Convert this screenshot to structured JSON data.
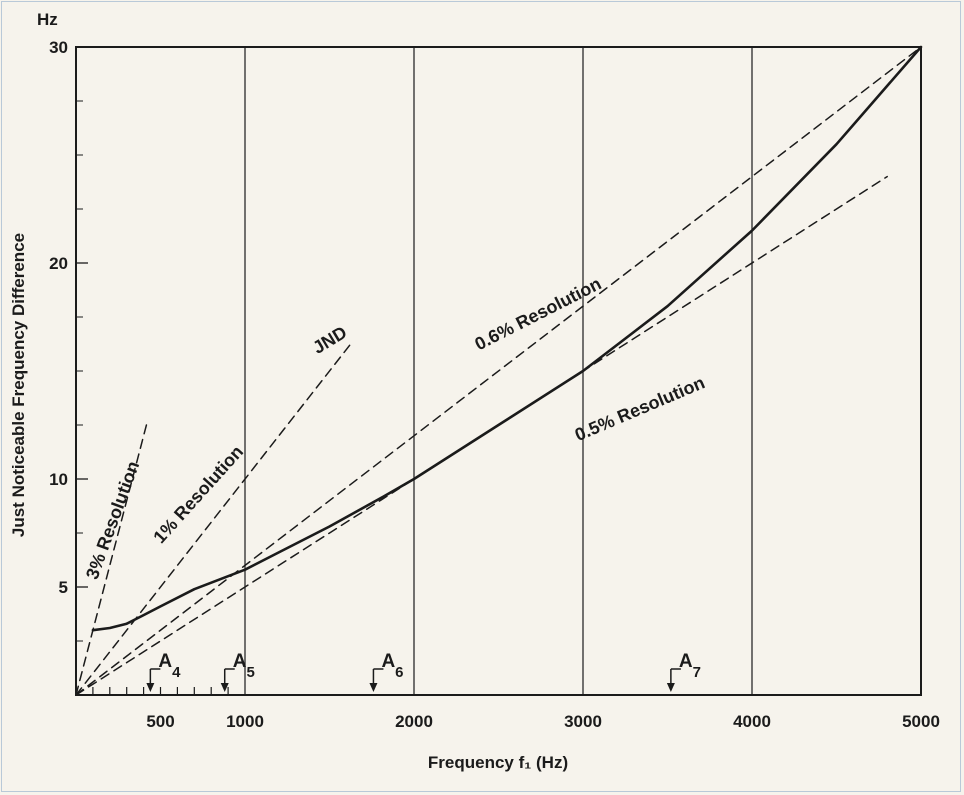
{
  "chart_data": {
    "type": "line",
    "y_unit": "Hz",
    "ylabel": "Just Noticeable Frequency Difference",
    "xlabel": "Frequency f₁ (Hz)",
    "xlim": [
      0,
      5000
    ],
    "ylim": [
      0,
      30
    ],
    "x_ticks": [
      "500",
      "1000",
      "2000",
      "3000",
      "4000",
      "5000"
    ],
    "y_ticks": [
      "5",
      "10",
      "20",
      "30"
    ],
    "grid": true,
    "series": [
      {
        "name": "JND",
        "style": "solid",
        "x": [
          100,
          200,
          300,
          400,
          500,
          700,
          900,
          1000,
          1200,
          1500,
          1800,
          2000,
          2500,
          3000,
          3500,
          4000,
          4500,
          5000
        ],
        "y": [
          3.0,
          3.1,
          3.3,
          3.7,
          4.1,
          4.9,
          5.5,
          5.8,
          6.6,
          7.8,
          9.1,
          10.0,
          12.5,
          15.0,
          18.0,
          21.5,
          25.5,
          30.0
        ]
      },
      {
        "name": "3% Resolution",
        "style": "dashed",
        "x": [
          0,
          420
        ],
        "y": [
          0,
          12.6
        ]
      },
      {
        "name": "1% Resolution",
        "style": "dashed",
        "x": [
          0,
          1620
        ],
        "y": [
          0,
          16.2
        ]
      },
      {
        "name": "0.6% Resolution",
        "style": "dashed",
        "x": [
          0,
          5000
        ],
        "y": [
          0,
          30
        ]
      },
      {
        "name": "0.5% Resolution",
        "style": "dashed",
        "x": [
          0,
          4800
        ],
        "y": [
          0,
          24
        ]
      }
    ],
    "markers": [
      {
        "label": "A4",
        "base": "A",
        "sub": "4",
        "x": 440
      },
      {
        "label": "A5",
        "base": "A",
        "sub": "5",
        "x": 880
      },
      {
        "label": "A6",
        "base": "A",
        "sub": "6",
        "x": 1760
      },
      {
        "label": "A7",
        "base": "A",
        "sub": "7",
        "x": 3520
      }
    ]
  }
}
